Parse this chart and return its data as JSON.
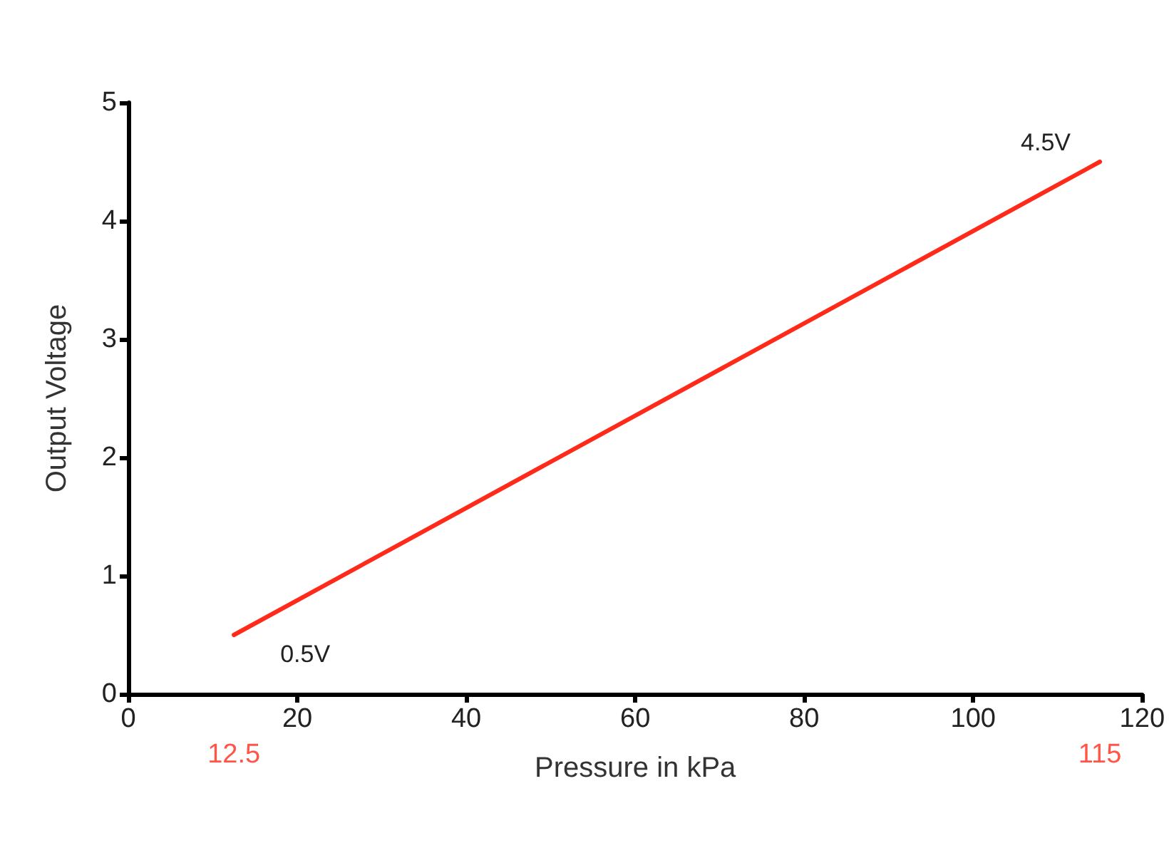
{
  "chart_data": {
    "type": "line",
    "xlabel": "Pressure in kPa",
    "ylabel": "Output Voltage",
    "x": [
      12.5,
      115
    ],
    "series": [
      {
        "color": "#ff2a1a",
        "values": [
          0.5,
          4.5
        ],
        "value_labels": [
          "0.5V",
          "4.5V"
        ]
      }
    ],
    "xlim": [
      0,
      120
    ],
    "xticks": [
      0,
      20,
      40,
      60,
      80,
      100,
      120
    ],
    "ylim": [
      0,
      5
    ],
    "yticks": [
      0,
      1,
      2,
      3,
      4,
      5
    ],
    "annotations": [
      "12.5",
      "115"
    ],
    "grid": false,
    "marker": "none",
    "line_style": "solid"
  }
}
